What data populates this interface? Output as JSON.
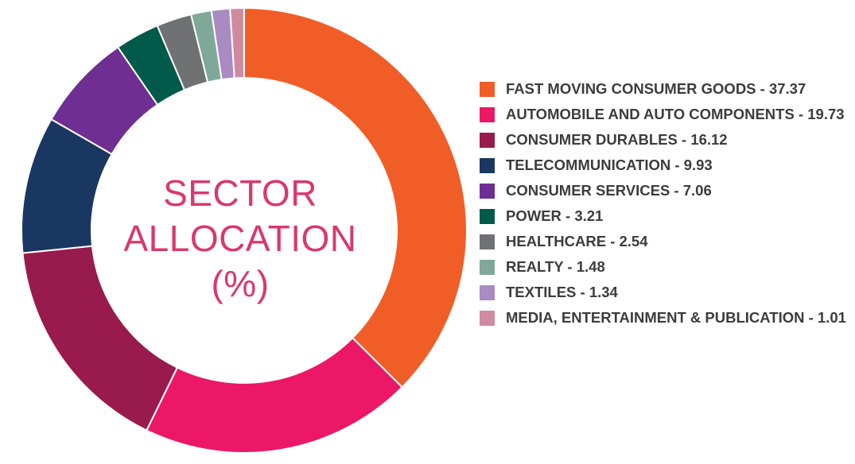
{
  "center_label": {
    "line1": "SECTOR",
    "line2": "ALLOCATION",
    "line3": "(%)"
  },
  "chart_data": {
    "type": "pie",
    "title": "SECTOR ALLOCATION (%)",
    "legend_position": "right",
    "donut": true,
    "slices": [
      {
        "label": "FAST MOVING CONSUMER GOODS",
        "value": 37.37,
        "display": "FAST MOVING CONSUMER GOODS - 37.37",
        "color": "#f15d27"
      },
      {
        "label": "AUTOMOBILE AND AUTO COMPONENTS",
        "value": 19.73,
        "display": "AUTOMOBILE AND AUTO COMPONENTS - 19.73",
        "color": "#ec1766"
      },
      {
        "label": "CONSUMER DURABLES",
        "value": 16.12,
        "display": "CONSUMER DURABLES - 16.12",
        "color": "#991a4d"
      },
      {
        "label": "TELECOMMUNICATION",
        "value": 9.93,
        "display": "TELECOMMUNICATION - 9.93",
        "color": "#1a3762"
      },
      {
        "label": "CONSUMER SERVICES",
        "value": 7.06,
        "display": "CONSUMER SERVICES - 7.06",
        "color": "#6f2e92"
      },
      {
        "label": "POWER",
        "value": 3.21,
        "display": "POWER - 3.21",
        "color": "#005a49"
      },
      {
        "label": "HEALTHCARE",
        "value": 2.54,
        "display": "HEALTHCARE - 2.54",
        "color": "#707173"
      },
      {
        "label": "REALTY",
        "value": 1.48,
        "display": "REALTY - 1.48",
        "color": "#7fa898"
      },
      {
        "label": "TEXTILES",
        "value": 1.34,
        "display": "TEXTILES - 1.34",
        "color": "#a98ac3"
      },
      {
        "label": "MEDIA, ENTERTAINMENT & PUBLICATION",
        "value": 1.01,
        "display": "MEDIA, ENTERTAINMENT & PUBLICATION - 1.01",
        "color": "#cf8aa0"
      }
    ]
  }
}
